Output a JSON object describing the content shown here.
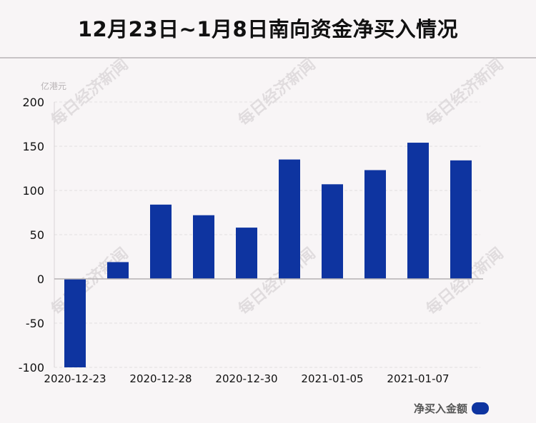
{
  "title": "12月23日~1月8日南向资金净买入情况",
  "watermark": "每日经济新闻",
  "legend": {
    "label": "净买入金额",
    "color": "#0e34a0"
  },
  "chart_data": {
    "type": "bar",
    "title": "12月23日~1月8日南向资金净买入情况",
    "unit_label": "亿港元",
    "ylim": [
      -100,
      200
    ],
    "yticks": [
      200,
      150,
      100,
      50,
      0,
      -50,
      -100
    ],
    "grid": true,
    "legend_position": "bottom-right",
    "categories": [
      "2020-12-23",
      "",
      "2020-12-28",
      "",
      "2020-12-30",
      "",
      "2021-01-05",
      "",
      "2021-01-07",
      ""
    ],
    "series": [
      {
        "name": "净买入金额",
        "color": "#0e34a0",
        "values": [
          -100,
          19,
          84,
          72,
          58,
          135,
          107,
          123,
          154,
          134
        ]
      }
    ]
  }
}
